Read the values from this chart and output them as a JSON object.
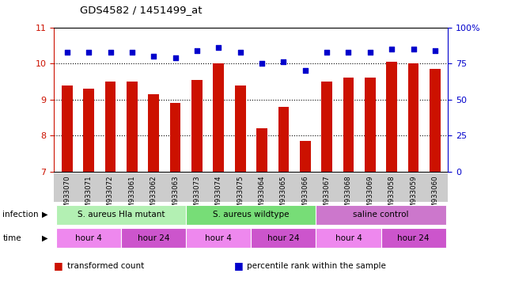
{
  "title": "GDS4582 / 1451499_at",
  "samples": [
    "GSM933070",
    "GSM933071",
    "GSM933072",
    "GSM933061",
    "GSM933062",
    "GSM933063",
    "GSM933073",
    "GSM933074",
    "GSM933075",
    "GSM933064",
    "GSM933065",
    "GSM933066",
    "GSM933067",
    "GSM933068",
    "GSM933069",
    "GSM933058",
    "GSM933059",
    "GSM933060"
  ],
  "bar_values": [
    9.4,
    9.3,
    9.5,
    9.5,
    9.15,
    8.9,
    9.55,
    10.0,
    9.4,
    8.2,
    8.8,
    7.85,
    9.5,
    9.6,
    9.6,
    10.05,
    10.0,
    9.85
  ],
  "dot_values": [
    83,
    83,
    83,
    83,
    80,
    79,
    84,
    86,
    83,
    75,
    76,
    70,
    83,
    83,
    83,
    85,
    85,
    84
  ],
  "bar_color": "#cc1100",
  "dot_color": "#0000cc",
  "ylim_left": [
    7,
    11
  ],
  "ylim_right": [
    0,
    100
  ],
  "yticks_left": [
    7,
    8,
    9,
    10,
    11
  ],
  "yticks_right": [
    0,
    25,
    50,
    75,
    100
  ],
  "ytick_labels_right": [
    "0",
    "25",
    "50",
    "75",
    "100%"
  ],
  "infection_groups": [
    {
      "label": "S. aureus Hla mutant",
      "start": 0,
      "end": 6,
      "color": "#b3f0b3"
    },
    {
      "label": "S. aureus wildtype",
      "start": 6,
      "end": 12,
      "color": "#77dd77"
    },
    {
      "label": "saline control",
      "start": 12,
      "end": 18,
      "color": "#cc77cc"
    }
  ],
  "time_groups": [
    {
      "label": "hour 4",
      "start": 0,
      "end": 3,
      "color": "#ee88ee"
    },
    {
      "label": "hour 24",
      "start": 3,
      "end": 6,
      "color": "#cc55cc"
    },
    {
      "label": "hour 4",
      "start": 6,
      "end": 9,
      "color": "#ee88ee"
    },
    {
      "label": "hour 24",
      "start": 9,
      "end": 12,
      "color": "#cc55cc"
    },
    {
      "label": "hour 4",
      "start": 12,
      "end": 15,
      "color": "#ee88ee"
    },
    {
      "label": "hour 24",
      "start": 15,
      "end": 18,
      "color": "#cc55cc"
    }
  ],
  "infection_label": "infection",
  "time_label": "time",
  "legend_items": [
    {
      "label": "transformed count",
      "color": "#cc1100"
    },
    {
      "label": "percentile rank within the sample",
      "color": "#0000cc"
    }
  ],
  "background_color": "#ffffff",
  "plot_bg_color": "#ffffff",
  "grid_color": "#000000",
  "tick_color_left": "#cc1100",
  "tick_color_right": "#0000cc",
  "bar_width": 0.5,
  "sample_bg_color": "#cccccc"
}
